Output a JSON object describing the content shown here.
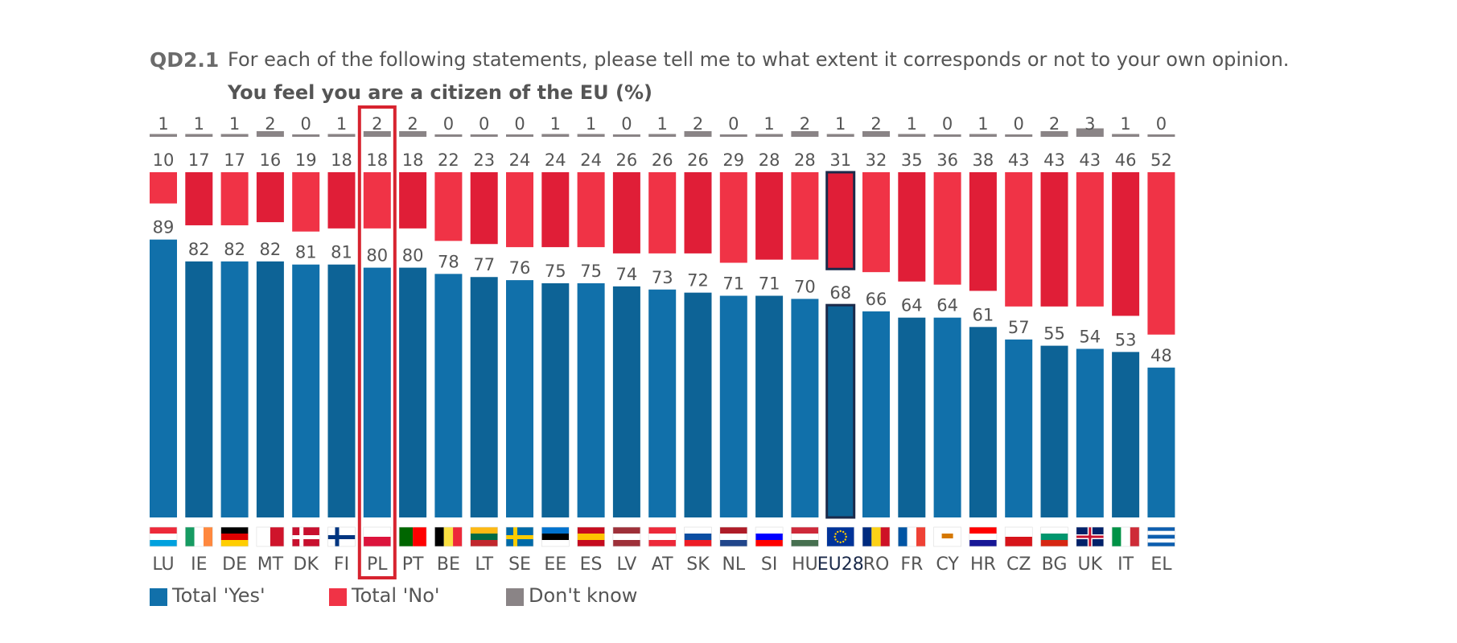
{
  "header": {
    "code": "QD2.1",
    "question": "For each of the following statements, please tell me to what extent it corresponds or not to your own opinion.",
    "subtitle": "You feel you are a citizen of the EU  (%)"
  },
  "colors": {
    "yes": "#1170aa",
    "yes_alt": "#0d6396",
    "no": "#f03346",
    "no_alt": "#e01e37",
    "dont_know": "#8a8486",
    "highlight_border": "#d7232f",
    "eu_border": "#1b2a4a"
  },
  "legend": {
    "position": "bottom-left",
    "items": [
      {
        "label": "Total 'Yes'",
        "color": "#1170aa"
      },
      {
        "label": "Total 'No'",
        "color": "#f03346"
      },
      {
        "label": "Don't know",
        "color": "#8a8486"
      }
    ]
  },
  "chart_data": {
    "type": "bar",
    "stacked": false,
    "highlight_category": "PL",
    "aggregate_category": "EU28",
    "categories": [
      "LU",
      "IE",
      "DE",
      "MT",
      "DK",
      "FI",
      "PL",
      "PT",
      "BE",
      "LT",
      "SE",
      "EE",
      "ES",
      "LV",
      "AT",
      "SK",
      "NL",
      "SI",
      "HU",
      "EU28",
      "RO",
      "FR",
      "CY",
      "HR",
      "CZ",
      "BG",
      "UK",
      "IT",
      "EL"
    ],
    "series": [
      {
        "name": "Total 'Yes'",
        "values": [
          89,
          82,
          82,
          82,
          81,
          81,
          80,
          80,
          78,
          77,
          76,
          75,
          75,
          74,
          73,
          72,
          71,
          71,
          70,
          68,
          66,
          64,
          64,
          61,
          57,
          55,
          54,
          53,
          48
        ]
      },
      {
        "name": "Total 'No'",
        "values": [
          10,
          17,
          17,
          16,
          19,
          18,
          18,
          18,
          22,
          23,
          24,
          24,
          24,
          26,
          26,
          26,
          29,
          28,
          28,
          31,
          32,
          35,
          36,
          38,
          43,
          43,
          43,
          46,
          52
        ]
      },
      {
        "name": "Don't know",
        "values": [
          1,
          1,
          1,
          2,
          0,
          1,
          2,
          2,
          0,
          0,
          0,
          1,
          1,
          0,
          1,
          2,
          0,
          1,
          2,
          1,
          2,
          1,
          0,
          1,
          0,
          2,
          3,
          1,
          0
        ]
      }
    ]
  }
}
